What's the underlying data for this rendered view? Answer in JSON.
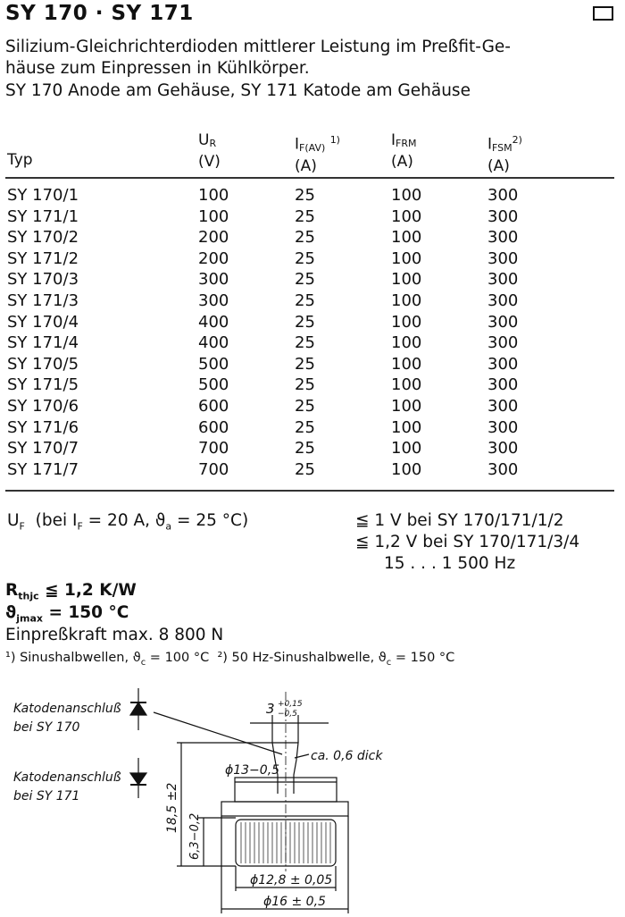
{
  "header": {
    "title": "SY 170 · SY 171",
    "icon": "box-outline-icon",
    "description": [
      "Silizium-Gleichrichterdioden mittlerer Leistung im Preßfit-Ge-",
      "häuse zum Einpressen in Kühlkörper.",
      "SY 170 Anode am Gehäuse, SY 171 Katode am Gehäuse"
    ]
  },
  "table": {
    "columns": [
      {
        "symbol": "",
        "unit": "Typ"
      },
      {
        "symbol": "U",
        "sub": "R",
        "sup": "",
        "unit": "(V)"
      },
      {
        "symbol": "I",
        "sub": "F(AV)",
        "sup": "1)",
        "unit": "(A)"
      },
      {
        "symbol": "I",
        "sub": "FRM",
        "sup": "",
        "unit": "(A)"
      },
      {
        "symbol": "I",
        "sub": "FSM",
        "sup": "2)",
        "unit": "(A)"
      }
    ],
    "rows": [
      [
        "SY 170/1",
        "100",
        "25",
        "100",
        "300"
      ],
      [
        "SY 171/1",
        "100",
        "25",
        "100",
        "300"
      ],
      [
        "SY 170/2",
        "200",
        "25",
        "100",
        "300"
      ],
      [
        "SY 171/2",
        "200",
        "25",
        "100",
        "300"
      ],
      [
        "SY 170/3",
        "300",
        "25",
        "100",
        "300"
      ],
      [
        "SY 171/3",
        "300",
        "25",
        "100",
        "300"
      ],
      [
        "SY 170/4",
        "400",
        "25",
        "100",
        "300"
      ],
      [
        "SY 171/4",
        "400",
        "25",
        "100",
        "300"
      ],
      [
        "SY 170/5",
        "500",
        "25",
        "100",
        "300"
      ],
      [
        "SY 171/5",
        "500",
        "25",
        "100",
        "300"
      ],
      [
        "SY 170/6",
        "600",
        "25",
        "100",
        "300"
      ],
      [
        "SY 171/6",
        "600",
        "25",
        "100",
        "300"
      ],
      [
        "SY 170/7",
        "700",
        "25",
        "100",
        "300"
      ],
      [
        "SY 171/7",
        "700",
        "25",
        "100",
        "300"
      ]
    ]
  },
  "specs": {
    "uf_label": "U",
    "uf_sub": "F",
    "uf_cond": "(bei I",
    "uf_cond_sub": "F",
    "uf_cond_rest": " = 20 A, ϑ",
    "uf_cond_sub2": "a",
    "uf_cond_end": " = 25 °C)",
    "uf_value_1": "≦ 1 V bei SY 170/171/1/2",
    "uf_value_2": "≦ 1,2 V bei SY 170/171/3/4",
    "freq": "15 . . . 1 500 Hz",
    "rth_label": "R",
    "rth_sub": "thjc",
    "rth_value": " ≦ 1,2 K/W",
    "tj_label": "ϑ",
    "tj_sub": "jmax",
    "tj_value": "  = 150 °C",
    "force": "Einpreßkraft max. 8 800 N",
    "footnote_1": "¹) Sinushalbwellen, ϑ",
    "footnote_1_sub": "c",
    "footnote_1_end": " = 100 °C",
    "footnote_2": "²) 50 Hz-Sinushalbwelle, ϑ",
    "footnote_2_sub": "c",
    "footnote_2_end": " = 150 °C"
  },
  "drawing": {
    "label_170_a": "Katodenanschluß",
    "label_170_b": "bei SY 170",
    "label_171_a": "Katodenanschluß",
    "label_171_b": "bei SY 171",
    "dim_tab_width": "3",
    "dim_tab_tol_plus": "+0,15",
    "dim_tab_tol_minus": "−0,5",
    "dim_thickness": "ca. 0,6 dick",
    "dim_flange": "ϕ13−0,5",
    "dim_height": "18,5 ±2",
    "dim_body_height": "6,3−0,2",
    "dim_knurl": "ϕ12,8 ± 0,05",
    "dim_base": "ϕ16 ± 0,5"
  }
}
